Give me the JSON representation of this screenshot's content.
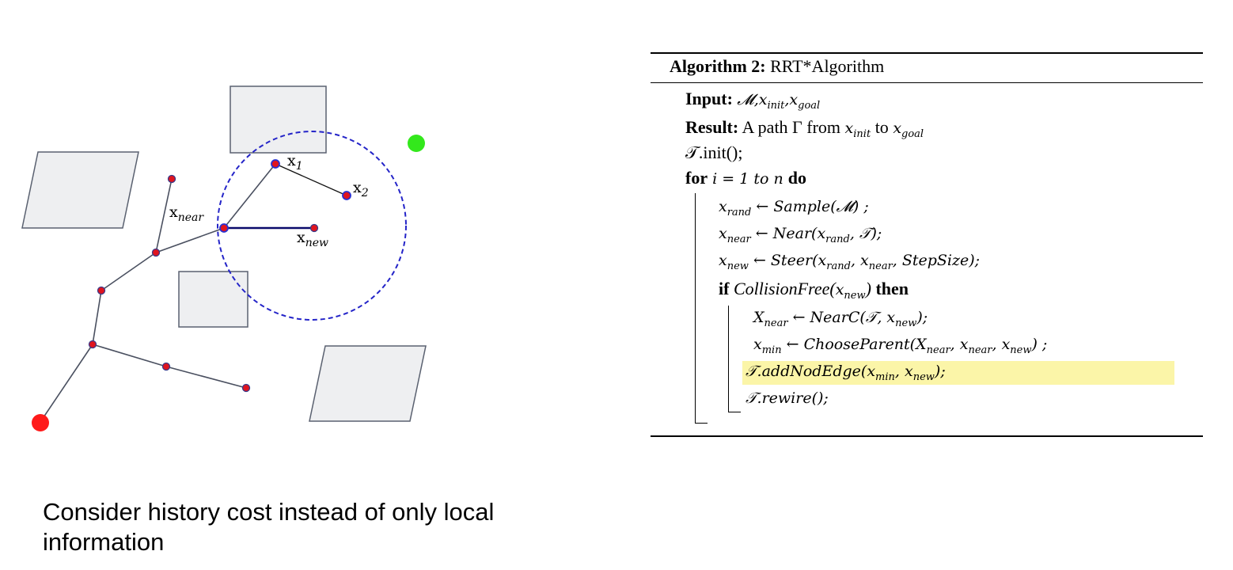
{
  "diagram": {
    "labels": {
      "x1": "x",
      "x1_sub": "1",
      "x2": "x",
      "x2_sub": "2",
      "xnear": "x",
      "xnear_sub": "near",
      "xnew": "x",
      "xnew_sub": "new"
    },
    "colors": {
      "obstacle_fill": "#eeeff1",
      "obstacle_stroke": "#5a6170",
      "edge": "#4a5060",
      "node_fill": "#e0141e",
      "node_stroke": "#2a2fa0",
      "circle": "#2424c8",
      "start": "#ff1a1a",
      "goal": "#33e81c"
    }
  },
  "caption": "Consider history cost instead of only local information",
  "algorithm": {
    "title_bold": "Algorithm 2:",
    "title_rest": " RRT*Algorithm",
    "input_kw": "Input:",
    "input_val": "𝓜,x_init,x_goal",
    "result_kw": "Result:",
    "result_text_1": " A path Γ from ",
    "result_var_1": "x",
    "result_sub_1": "init",
    "result_text_2": " to ",
    "result_var_2": "x",
    "result_sub_2": "goal",
    "line_init": "𝒯.init();",
    "for_kw": "for",
    "for_cond": " i = 1 to n ",
    "do_kw": "do",
    "l_rand": "x_rand ← Sample(𝓜) ;",
    "l_near": "x_near ← Near(x_rand, 𝒯);",
    "l_new": "x_new ← Steer(x_rand, x_near, StepSize);",
    "if_kw": "if",
    "if_cond": " CollisionFree(x_new) ",
    "then_kw": "then",
    "l_Xnear": "X_near ← NearC(𝒯, x_new);",
    "l_min": "x_min ← ChooseParent(X_near, x_near, x_new) ;",
    "l_add": "𝒯.addNodEdge(x_min, x_new);",
    "l_rewire": "𝒯.rewire();"
  }
}
